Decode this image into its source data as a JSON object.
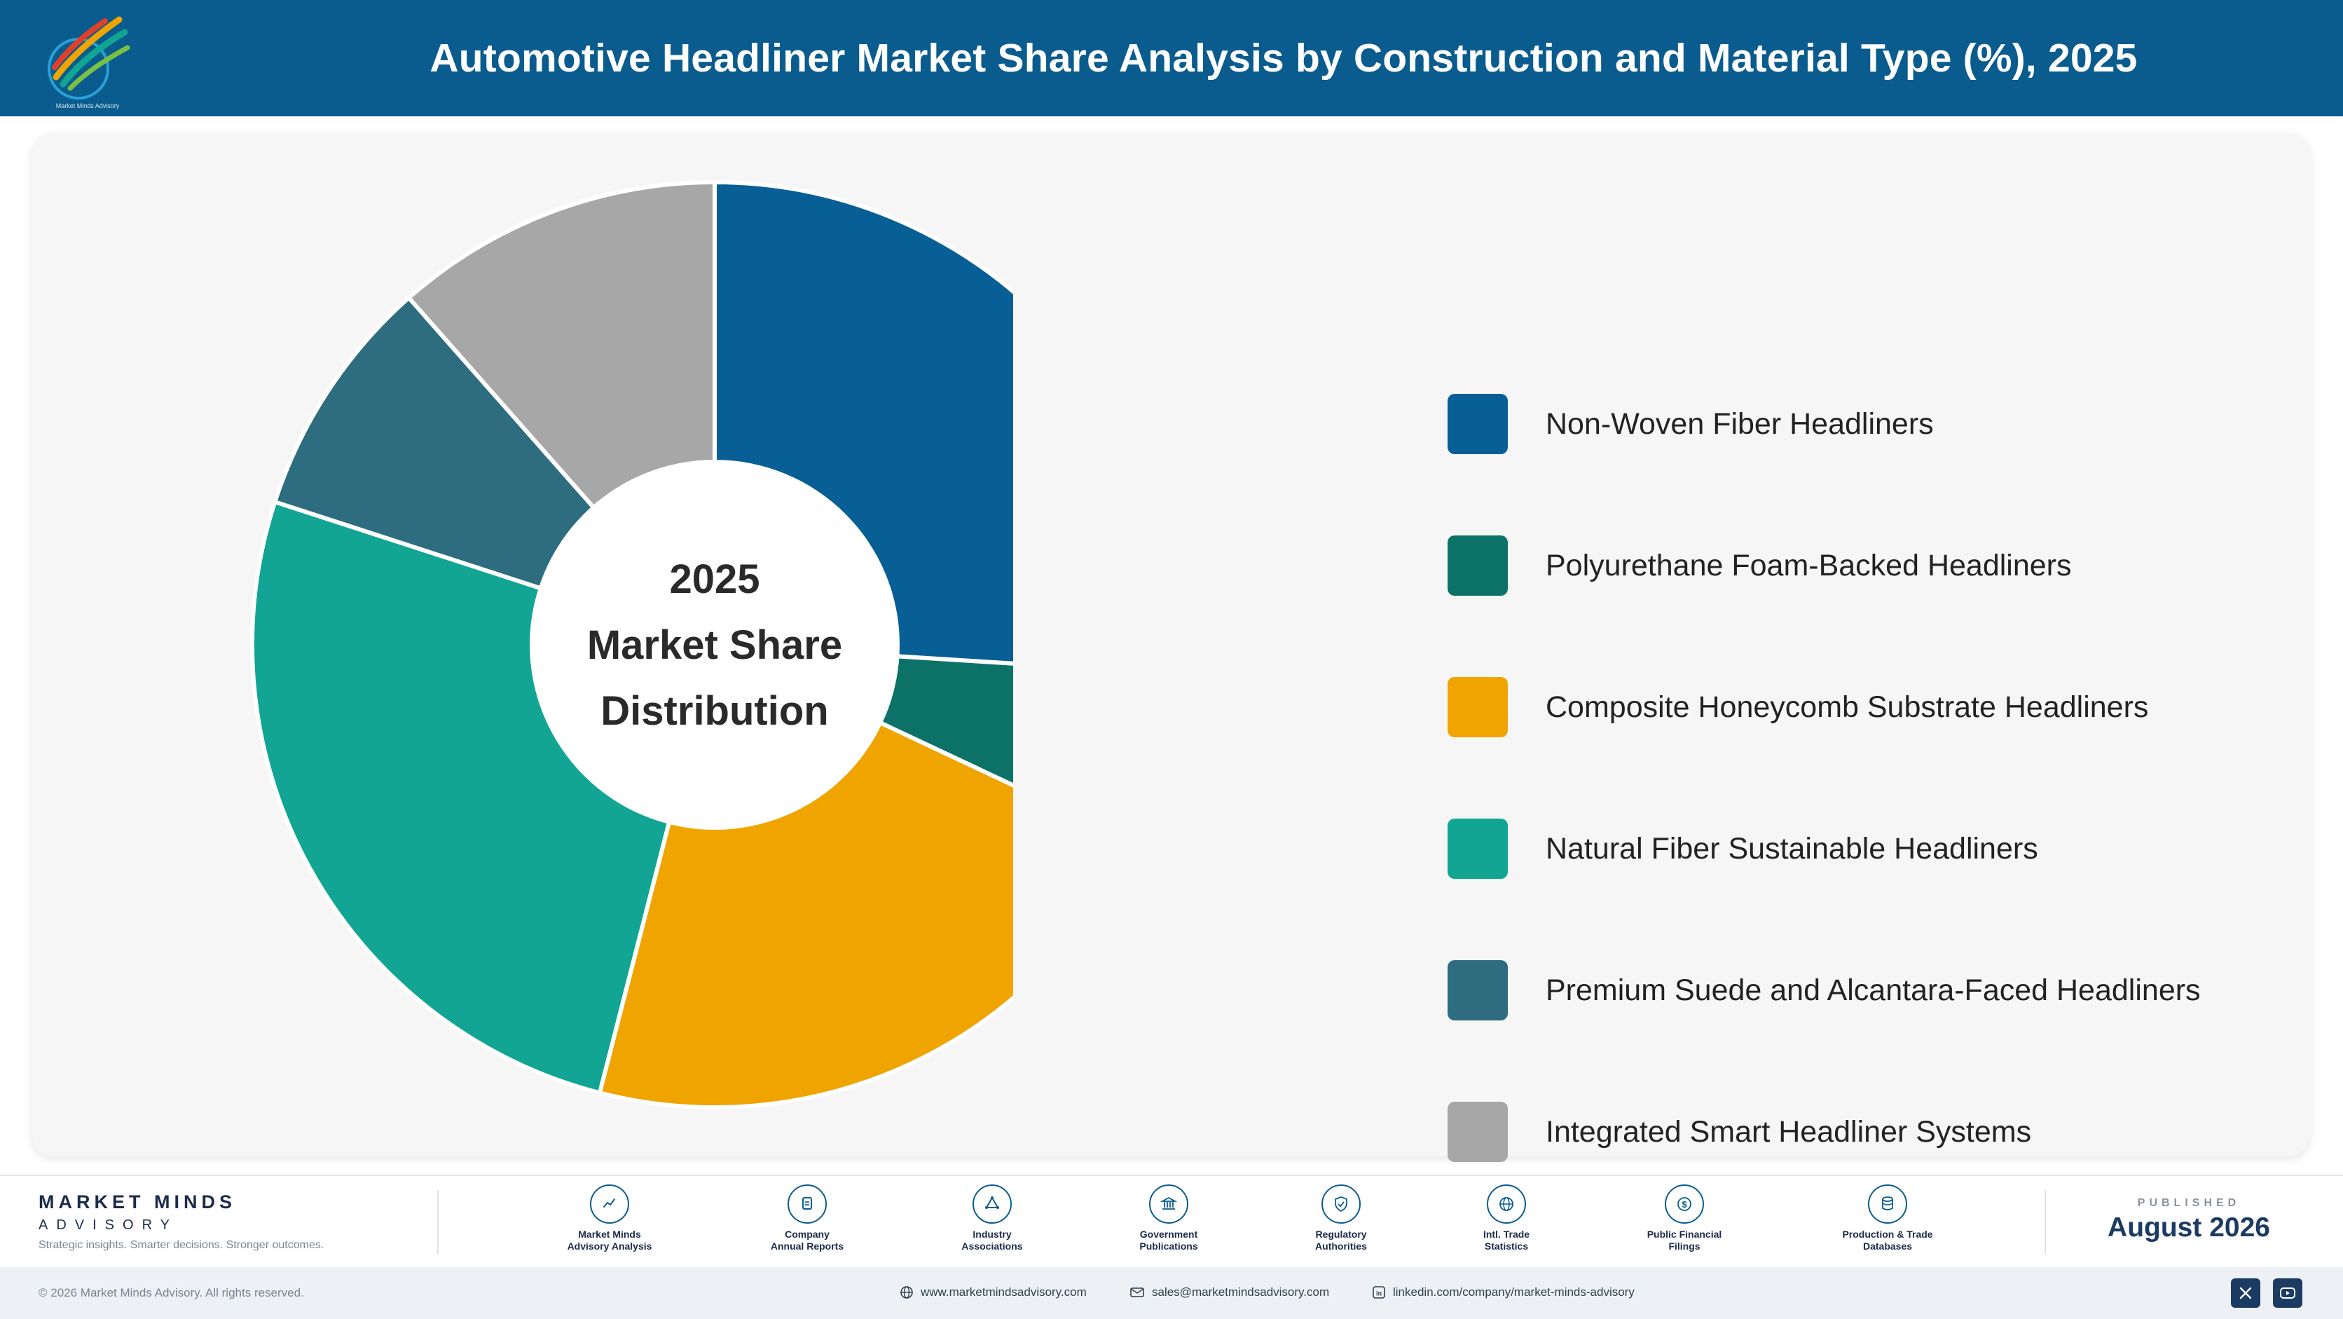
{
  "header": {
    "title": "Automotive Headliner Market Share Analysis by Construction and Material Type (%), 2025",
    "logo_icon": "pencils-logo-icon",
    "logo_caption": "Market Minds Advisory"
  },
  "chart_data": {
    "type": "pie",
    "variant": "donut",
    "center_label": [
      "2025",
      "Market Share",
      "Distribution"
    ],
    "legend_placement": "right",
    "categories": [
      "Non-Woven Fiber Headliners",
      "Polyurethane Foam-Backed Headliners",
      "Composite Honeycomb Substrate Headliners",
      "Natural Fiber Sustainable Headliners",
      "Premium Suede and Alcantara-Faced Headliners",
      "Integrated Smart Headliner Systems"
    ],
    "values": [
      26.0,
      6.0,
      22.0,
      26.0,
      8.5,
      11.5
    ],
    "colors": [
      "#075f95",
      "#0c7268",
      "#f0a400",
      "#12a593",
      "#2e6c80",
      "#a7a7a7"
    ]
  },
  "footer": {
    "brand_name": "MARKET MINDS",
    "brand_sub": "ADVISORY",
    "tagline": "Strategic insights. Smarter decisions. Stronger outcomes.",
    "sources": [
      {
        "icon": "trend-chart-icon",
        "label": "Market Minds\nAdvisory Analysis"
      },
      {
        "icon": "document-icon",
        "label": "Company\nAnnual Reports"
      },
      {
        "icon": "network-icon",
        "label": "Industry\nAssociations"
      },
      {
        "icon": "government-building-icon",
        "label": "Government\nPublications"
      },
      {
        "icon": "shield-check-icon",
        "label": "Regulatory\nAuthorities"
      },
      {
        "icon": "globe-icon",
        "label": "Intl. Trade\nStatistics"
      },
      {
        "icon": "dollar-coin-icon",
        "label": "Public Financial\nFilings"
      },
      {
        "icon": "database-icon",
        "label": "Production & Trade\nDatabases"
      }
    ],
    "published_label": "PUBLISHED",
    "published_date": "August 2026"
  },
  "bottom_bar": {
    "copyright": "© 2026 Market Minds Advisory. All rights reserved.",
    "website": "www.marketmindsadvisory.com",
    "email": "sales@marketmindsadvisory.com",
    "linkedin": "linkedin.com/company/market-minds-advisory",
    "social": [
      "x-icon",
      "youtube-icon"
    ]
  }
}
